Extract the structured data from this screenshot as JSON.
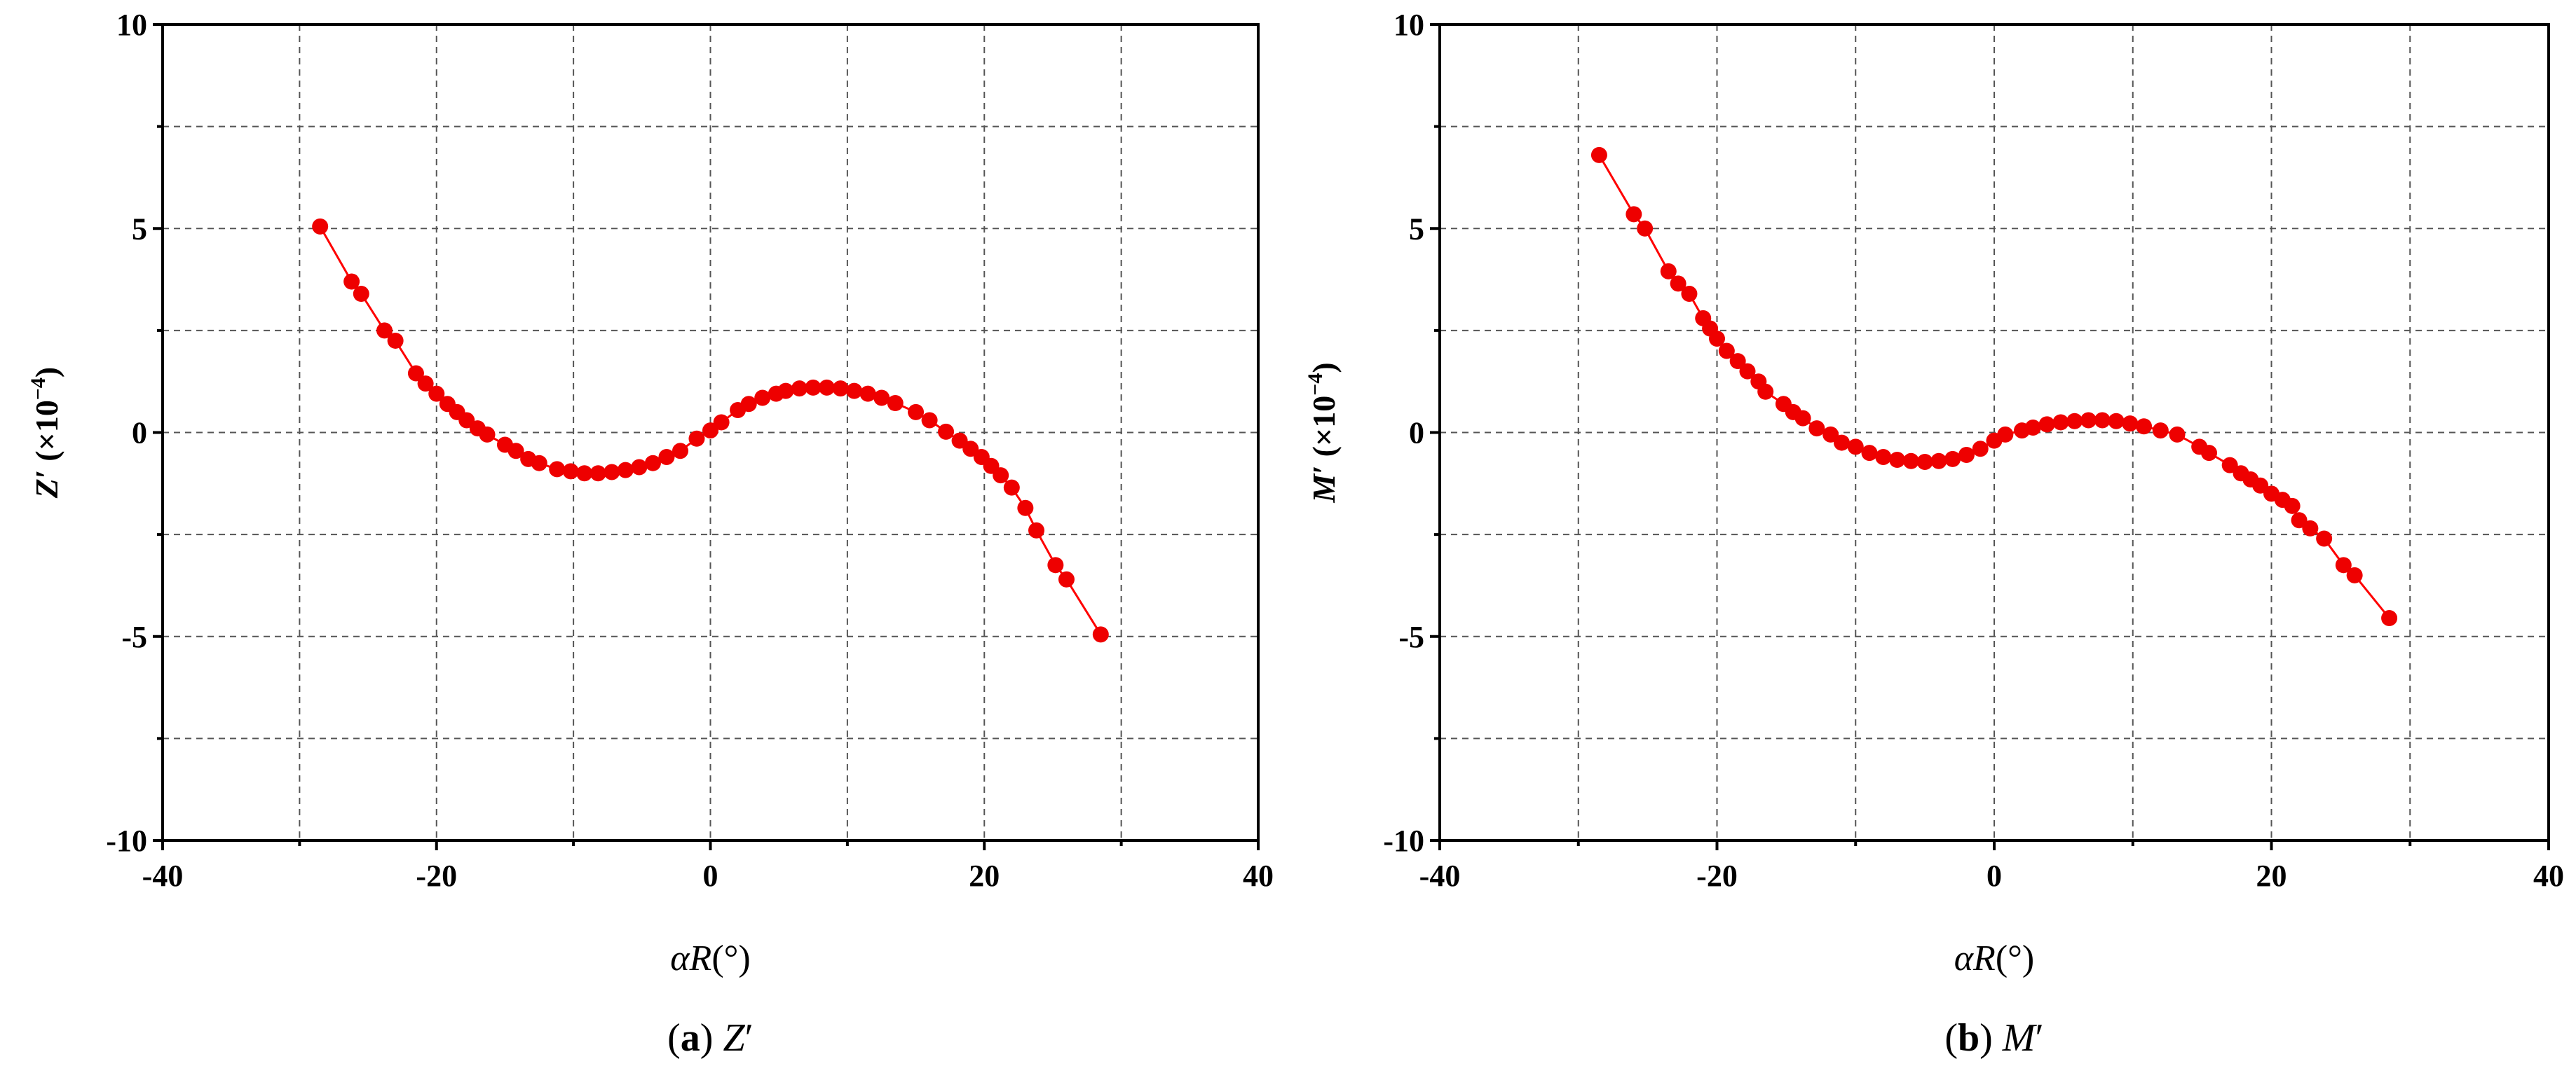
{
  "chart_data": [
    {
      "type": "line",
      "caption_letter": "a",
      "caption_symbol": "Z′",
      "xlabel": "αR(°)",
      "ylabel": "Z′ (×10⁻⁴)",
      "xlim": [
        -40,
        40
      ],
      "ylim": [
        -10,
        10
      ],
      "xticks": [
        "-40",
        "-20",
        "0",
        "20",
        "40"
      ],
      "yticks": [
        "-10",
        "-5",
        "0",
        "5",
        "10"
      ],
      "grid": true,
      "line_color": "#ff0000",
      "marker_color": "#ee0000",
      "series": [
        {
          "x": [
            -28.5,
            -26.2,
            -25.5,
            -23.8,
            -23.0,
            -21.5,
            -20.8,
            -20.0,
            -19.2,
            -18.5,
            -17.8,
            -17.0,
            -16.3,
            -15.0,
            -14.2,
            -13.3,
            -12.5,
            -11.2,
            -10.2,
            -9.2,
            -8.2,
            -7.2,
            -6.2,
            -5.2,
            -4.2,
            -3.2,
            -2.2,
            -1.0,
            0.0,
            0.8,
            2.0,
            2.8,
            3.8,
            4.8,
            5.5,
            6.5,
            7.5,
            8.5,
            9.5,
            10.5,
            11.5,
            12.5,
            13.5,
            15.0,
            16.0,
            17.2,
            18.2,
            19.0,
            19.8,
            20.5,
            21.2,
            22.0,
            23.0,
            23.8,
            25.2,
            26.0,
            28.5
          ],
          "y": [
            5.05,
            3.7,
            3.4,
            2.5,
            2.25,
            1.45,
            1.2,
            0.95,
            0.7,
            0.5,
            0.3,
            0.1,
            -0.05,
            -0.3,
            -0.45,
            -0.65,
            -0.75,
            -0.9,
            -0.95,
            -1.0,
            -1.0,
            -0.97,
            -0.92,
            -0.85,
            -0.75,
            -0.6,
            -0.45,
            -0.15,
            0.05,
            0.25,
            0.55,
            0.7,
            0.85,
            0.95,
            1.02,
            1.08,
            1.1,
            1.1,
            1.08,
            1.02,
            0.95,
            0.85,
            0.72,
            0.5,
            0.3,
            0.02,
            -0.2,
            -0.4,
            -0.6,
            -0.82,
            -1.05,
            -1.35,
            -1.85,
            -2.4,
            -3.25,
            -3.6,
            -4.95
          ]
        }
      ]
    },
    {
      "type": "line",
      "caption_letter": "b",
      "caption_symbol": "M′",
      "xlabel": "αR(°)",
      "ylabel": "M′ (×10⁻⁴)",
      "xlim": [
        -40,
        40
      ],
      "ylim": [
        -10,
        10
      ],
      "xticks": [
        "-40",
        "-20",
        "0",
        "20",
        "40"
      ],
      "yticks": [
        "-10",
        "-5",
        "0",
        "5",
        "10"
      ],
      "grid": true,
      "line_color": "#ff0000",
      "marker_color": "#ee0000",
      "series": [
        {
          "x": [
            -28.5,
            -26.0,
            -25.2,
            -23.5,
            -22.8,
            -22.0,
            -21.0,
            -20.5,
            -20.0,
            -19.3,
            -18.5,
            -17.8,
            -17.0,
            -16.5,
            -15.2,
            -14.5,
            -13.8,
            -12.8,
            -11.8,
            -11.0,
            -10.0,
            -9.0,
            -8.0,
            -7.0,
            -6.0,
            -5.0,
            -4.0,
            -3.0,
            -2.0,
            -1.0,
            0.0,
            0.8,
            2.0,
            2.8,
            3.8,
            4.8,
            5.8,
            6.8,
            7.8,
            8.8,
            9.8,
            10.8,
            12.0,
            13.2,
            14.8,
            15.5,
            17.0,
            17.8,
            18.5,
            19.2,
            20.0,
            20.8,
            21.5,
            22.0,
            22.8,
            23.8,
            25.2,
            26.0,
            28.5
          ],
          "y": [
            6.8,
            5.35,
            5.0,
            3.95,
            3.65,
            3.4,
            2.8,
            2.55,
            2.3,
            2.0,
            1.75,
            1.5,
            1.25,
            1.0,
            0.7,
            0.5,
            0.35,
            0.1,
            -0.05,
            -0.25,
            -0.35,
            -0.5,
            -0.6,
            -0.67,
            -0.7,
            -0.72,
            -0.7,
            -0.65,
            -0.55,
            -0.4,
            -0.2,
            -0.05,
            0.05,
            0.12,
            0.2,
            0.25,
            0.28,
            0.3,
            0.3,
            0.28,
            0.22,
            0.15,
            0.05,
            -0.05,
            -0.35,
            -0.5,
            -0.8,
            -1.0,
            -1.15,
            -1.3,
            -1.5,
            -1.65,
            -1.8,
            -2.15,
            -2.35,
            -2.6,
            -3.25,
            -3.5,
            -4.55
          ]
        }
      ]
    }
  ]
}
